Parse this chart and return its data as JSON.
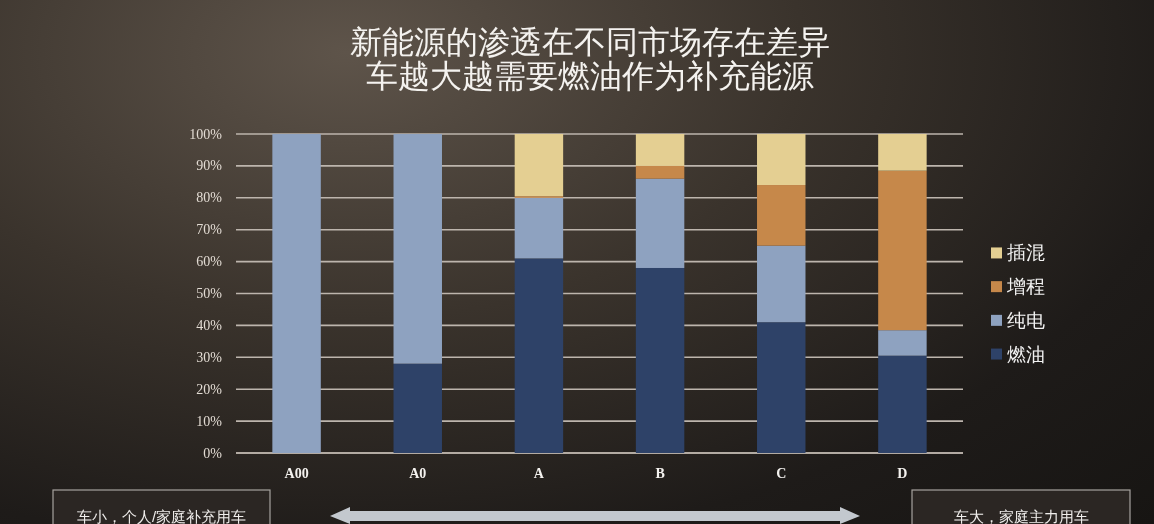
{
  "chart_data": {
    "type": "bar",
    "stacked": true,
    "title": "新能源的渗透在不同市场存在差异",
    "subtitle": "车越大越需要燃油作为补充能源",
    "categories": [
      "A00",
      "A0",
      "A",
      "B",
      "C",
      "D"
    ],
    "series": [
      {
        "name": "燃油",
        "color": "#2e4268",
        "values": [
          0,
          28,
          61,
          58,
          41,
          30.5
        ]
      },
      {
        "name": "纯电",
        "color": "#8ea2c0",
        "values": [
          100,
          72,
          19,
          28,
          24,
          8
        ]
      },
      {
        "name": "增程",
        "color": "#c6884a",
        "values": [
          0,
          0,
          0.5,
          4,
          19,
          50
        ]
      },
      {
        "name": "插混",
        "color": "#e4cf92",
        "values": [
          0,
          0,
          19.5,
          10,
          16,
          11.5
        ]
      }
    ],
    "ylim": [
      0,
      100
    ],
    "yticks": [
      {
        "value": 0,
        "label": "0%"
      },
      {
        "value": 10,
        "label": "10%"
      },
      {
        "value": 20,
        "label": "20%"
      },
      {
        "value": 30,
        "label": "30%"
      },
      {
        "value": 40,
        "label": "40%"
      },
      {
        "value": 50,
        "label": "50%"
      },
      {
        "value": 60,
        "label": "60%"
      },
      {
        "value": 70,
        "label": "70%"
      },
      {
        "value": 80,
        "label": "80%"
      },
      {
        "value": 90,
        "label": "90%"
      },
      {
        "value": 100,
        "label": "100%"
      }
    ],
    "grid": "y",
    "legend": "right",
    "annotations": [
      "车小，个人/家庭补充用车",
      "车大，家庭主力用车"
    ]
  }
}
